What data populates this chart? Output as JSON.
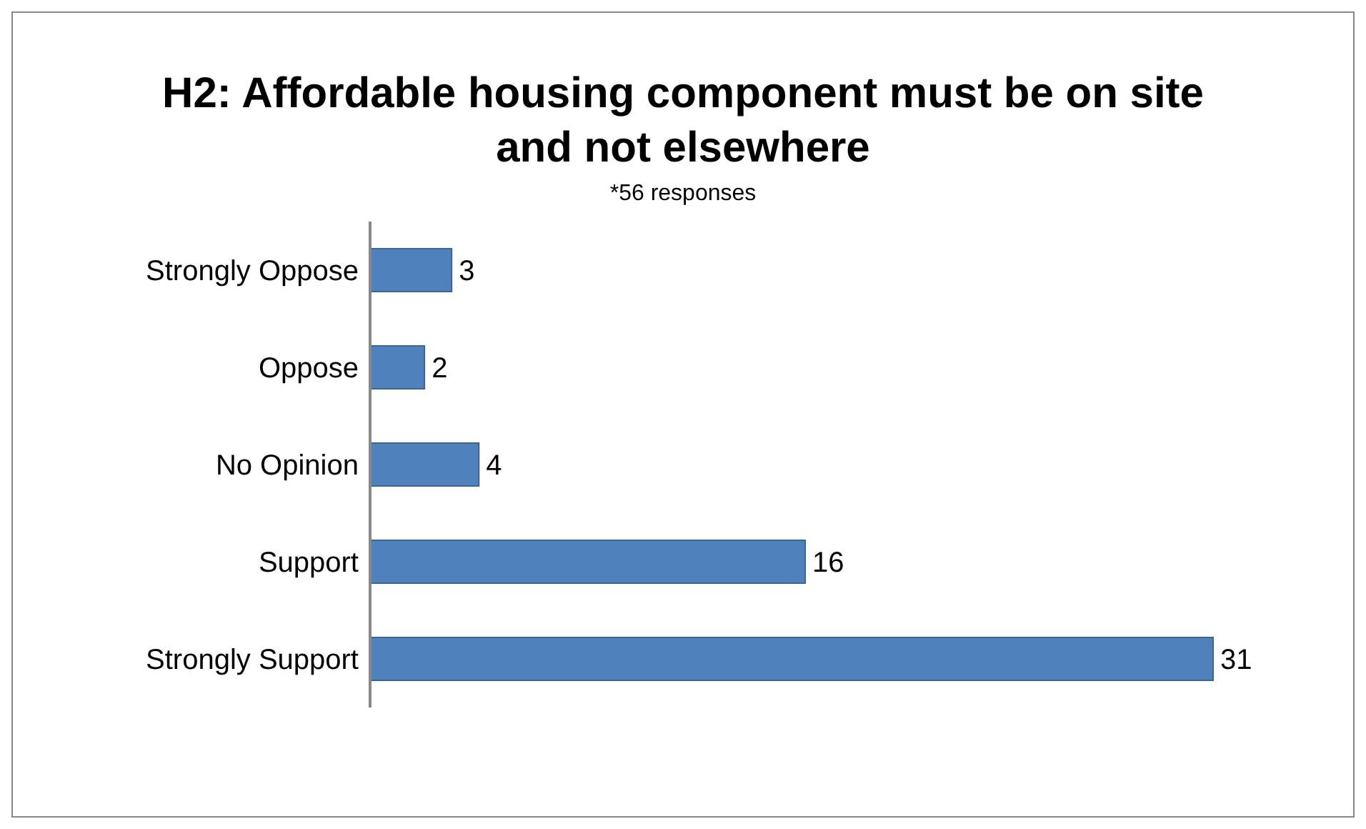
{
  "chart_data": {
    "type": "bar",
    "orientation": "horizontal",
    "title": "H2: Affordable housing component must be on site and not elsewhere",
    "subtitle": "*56 responses",
    "categories": [
      "Strongly Oppose",
      "Oppose",
      "No Opinion",
      "Support",
      "Strongly Support"
    ],
    "values": [
      3,
      2,
      4,
      16,
      31
    ],
    "color": "#4f81bd",
    "data_labels": true
  }
}
